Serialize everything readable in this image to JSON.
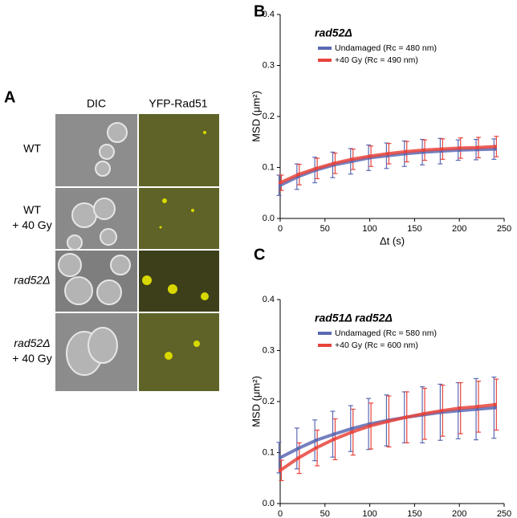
{
  "panel_labels": [
    "A",
    "B",
    "C"
  ],
  "panel_a": {
    "columns": [
      "DIC",
      "YFP-Rad51"
    ],
    "rows": [
      [
        "WT"
      ],
      [
        "WT",
        "+ 40 Gy"
      ],
      [
        "rad52Δ"
      ],
      [
        "rad52Δ",
        "+ 40 Gy"
      ]
    ]
  },
  "chart_data": [
    {
      "type": "line",
      "title": "rad52Δ",
      "xlabel": "Δt (s)",
      "ylabel": "MSD (μm²)",
      "x": [
        0,
        20,
        40,
        60,
        80,
        100,
        120,
        140,
        160,
        180,
        200,
        220,
        240
      ],
      "xlim": [
        0,
        250
      ],
      "xticks": [
        0,
        50,
        100,
        150,
        200,
        250
      ],
      "ylim": [
        0,
        0.4
      ],
      "yticks": [
        {
          "value": 0,
          "label": "0.0"
        },
        0.1,
        0.2,
        0.3,
        0.4
      ],
      "series": [
        {
          "name": "Undamaged  (Rc = 480 nm)",
          "color": "#5b69b3",
          "values": [
            0.065,
            0.082,
            0.095,
            0.105,
            0.112,
            0.119,
            0.123,
            0.127,
            0.13,
            0.132,
            0.134,
            0.135,
            0.136
          ],
          "errors": [
            0.02,
            0.025,
            0.025,
            0.025,
            0.025,
            0.025,
            0.025,
            0.025,
            0.025,
            0.025,
            0.02,
            0.02,
            0.02
          ]
        },
        {
          "name": "+40 Gy  (Rc = 490 nm)",
          "color": "#e8443c",
          "values": [
            0.07,
            0.086,
            0.098,
            0.108,
            0.116,
            0.122,
            0.127,
            0.131,
            0.134,
            0.136,
            0.138,
            0.139,
            0.141
          ],
          "errors": [
            0.015,
            0.02,
            0.02,
            0.02,
            0.02,
            0.02,
            0.02,
            0.02,
            0.02,
            0.02,
            0.02,
            0.02,
            0.02
          ]
        }
      ]
    },
    {
      "type": "line",
      "title": "rad51Δ rad52Δ",
      "xlabel": "Δt (s)",
      "ylabel": "MSD (μm²)",
      "x": [
        0,
        20,
        40,
        60,
        80,
        100,
        120,
        140,
        160,
        180,
        200,
        220,
        240
      ],
      "xlim": [
        0,
        250
      ],
      "xticks": [
        0,
        50,
        100,
        150,
        200,
        250
      ],
      "ylim": [
        0,
        0.4
      ],
      "yticks": [
        {
          "value": 0,
          "label": "0.0"
        },
        0.1,
        0.2,
        0.3,
        0.4
      ],
      "series": [
        {
          "name": "Undamaged  (Rc = 580 nm)",
          "color": "#5b69b3",
          "values": [
            0.09,
            0.108,
            0.124,
            0.136,
            0.147,
            0.156,
            0.163,
            0.169,
            0.174,
            0.179,
            0.182,
            0.185,
            0.188
          ],
          "errors": [
            0.03,
            0.04,
            0.04,
            0.045,
            0.045,
            0.05,
            0.05,
            0.05,
            0.055,
            0.055,
            0.055,
            0.06,
            0.06
          ]
        },
        {
          "name": "+40 Gy  (Rc = 600 nm)",
          "color": "#e8443c",
          "values": [
            0.065,
            0.089,
            0.109,
            0.126,
            0.14,
            0.152,
            0.161,
            0.169,
            0.176,
            0.182,
            0.187,
            0.19,
            0.194
          ],
          "errors": [
            0.02,
            0.03,
            0.035,
            0.04,
            0.045,
            0.045,
            0.05,
            0.05,
            0.05,
            0.05,
            0.05,
            0.05,
            0.05
          ]
        }
      ]
    }
  ]
}
